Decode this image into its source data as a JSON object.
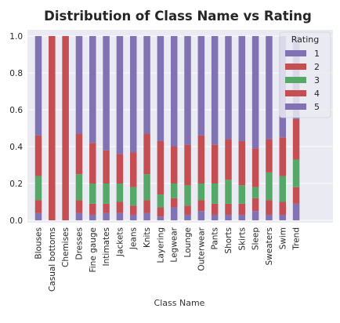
{
  "chart_data": {
    "type": "bar",
    "stacked": true,
    "title": "Distribution of Class Name vs Rating",
    "xlabel": "Class Name",
    "ylabel": "",
    "ylim": [
      0,
      1.0
    ],
    "yticks": [
      "0.0",
      "0.2",
      "0.4",
      "0.6",
      "0.8",
      "1.0"
    ],
    "grid": true,
    "categories": [
      "Blouses",
      "Casual bottoms",
      "Chemises",
      "Dresses",
      "Fine gauge",
      "Intimates",
      "Jackets",
      "Jeans",
      "Knits",
      "Layering",
      "Legwear",
      "Lounge",
      "Outerwear",
      "Pants",
      "Shorts",
      "Skirts",
      "Sleep",
      "Sweaters",
      "Swim",
      "Trend"
    ],
    "legend": {
      "title": "Rating",
      "position": "top-right"
    },
    "series": [
      {
        "name": "1",
        "color": "#8172b3",
        "values": [
          0.04,
          0.0,
          0.0,
          0.04,
          0.03,
          0.04,
          0.04,
          0.03,
          0.04,
          0.02,
          0.07,
          0.03,
          0.05,
          0.03,
          0.03,
          0.03,
          0.05,
          0.03,
          0.03,
          0.09
        ]
      },
      {
        "name": "2",
        "color": "#c44e52",
        "values": [
          0.07,
          0.0,
          0.0,
          0.07,
          0.06,
          0.05,
          0.06,
          0.05,
          0.07,
          0.05,
          0.05,
          0.05,
          0.06,
          0.06,
          0.06,
          0.06,
          0.07,
          0.08,
          0.07,
          0.09
        ]
      },
      {
        "name": "3",
        "color": "#55a868",
        "values": [
          0.13,
          0.0,
          0.0,
          0.14,
          0.11,
          0.11,
          0.1,
          0.1,
          0.14,
          0.07,
          0.08,
          0.11,
          0.09,
          0.11,
          0.13,
          0.1,
          0.06,
          0.15,
          0.14,
          0.15
        ]
      },
      {
        "name": "4",
        "color": "#c44e52",
        "values": [
          0.22,
          1.0,
          1.0,
          0.22,
          0.22,
          0.18,
          0.16,
          0.19,
          0.22,
          0.29,
          0.2,
          0.22,
          0.26,
          0.21,
          0.22,
          0.24,
          0.21,
          0.18,
          0.21,
          0.22
        ]
      },
      {
        "name": "5",
        "color": "#8172b3",
        "values": [
          0.54,
          0.0,
          0.0,
          0.53,
          0.58,
          0.62,
          0.64,
          0.63,
          0.53,
          0.57,
          0.6,
          0.59,
          0.54,
          0.59,
          0.56,
          0.57,
          0.61,
          0.56,
          0.55,
          0.45
        ]
      }
    ]
  }
}
